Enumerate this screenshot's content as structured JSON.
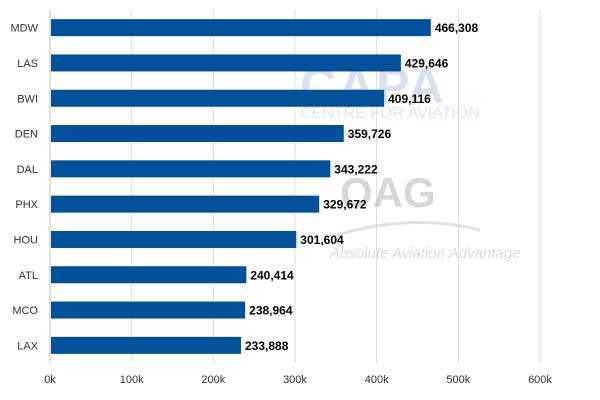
{
  "chart_data": {
    "type": "bar",
    "orientation": "horizontal",
    "categories": [
      "MDW",
      "LAS",
      "BWI",
      "DEN",
      "DAL",
      "PHX",
      "HOU",
      "ATL",
      "MCO",
      "LAX"
    ],
    "values": [
      466308,
      429646,
      409116,
      359726,
      343222,
      329672,
      301604,
      240414,
      238964,
      233888
    ],
    "value_labels": [
      "466,308",
      "429,646",
      "409,116",
      "359,726",
      "343,222",
      "329,672",
      "301,604",
      "240,414",
      "238,964",
      "233,888"
    ],
    "x_ticks": [
      0,
      100000,
      200000,
      300000,
      400000,
      500000,
      600000
    ],
    "x_tick_labels": [
      "0k",
      "100k",
      "200k",
      "300k",
      "400k",
      "500k",
      "600k"
    ],
    "xlim": [
      0,
      600000
    ],
    "grid": "vertical",
    "legend": "none",
    "bar_color": "#00509a",
    "title": "",
    "xlabel": "",
    "ylabel": ""
  },
  "watermarks": {
    "capa_logo": "CAPA",
    "capa_tagline": "CENTRE FOR AVIATION",
    "oag_logo": "OAG",
    "oag_tagline": "Absolute Aviation Advantage"
  }
}
